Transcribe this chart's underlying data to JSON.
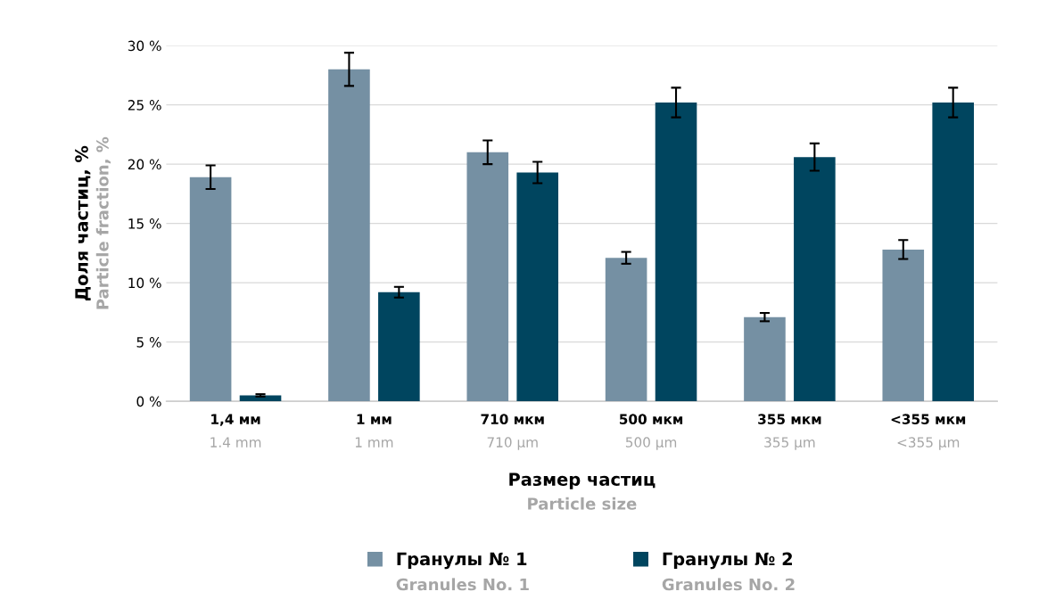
{
  "chart_data": {
    "type": "bar",
    "categories": [
      "1,4 мм\n1.4 mm",
      "1 мм\n1 mm",
      "710 мкм\n710 µm",
      "500 мкм\n500 µm",
      "355 мкм\n355 µm",
      "<355 мкм\n<355 µm"
    ],
    "xlabel": "Размер частиц\nParticle size",
    "ylabel": "Доля частиц, %\nParticle fraction, %",
    "series": [
      {
        "name": "Гранулы № 1\nGranules No. 1",
        "color": "#7590a3",
        "values": [
          18.9,
          28.0,
          21.0,
          12.1,
          7.1,
          12.8
        ],
        "errors": [
          1.0,
          1.4,
          1.0,
          0.5,
          0.35,
          0.8
        ]
      },
      {
        "name": "Гранулы № 2\nGranules No. 2",
        "color": "#00455f",
        "values": [
          0.5,
          9.2,
          19.3,
          25.2,
          20.6,
          25.2
        ],
        "errors": [
          0.1,
          0.45,
          0.9,
          1.25,
          1.15,
          1.25
        ]
      }
    ],
    "ylim": [
      0,
      30
    ],
    "yticks": [
      {
        "value": 0,
        "label": "0 %"
      },
      {
        "value": 5,
        "label": "5 %"
      },
      {
        "value": 10,
        "label": "10 %"
      },
      {
        "value": 15,
        "label": "15 %"
      },
      {
        "value": 20,
        "label": "20 %"
      },
      {
        "value": 25,
        "label": "25 %"
      },
      {
        "value": 30,
        "label": "30 %"
      }
    ],
    "grid": "y",
    "legend": "bottom"
  }
}
